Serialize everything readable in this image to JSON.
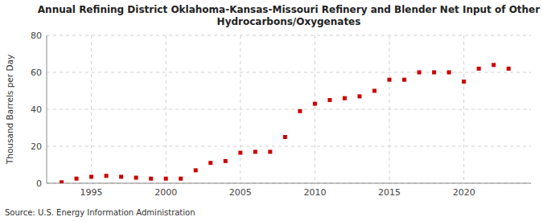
{
  "chart_data": {
    "type": "scatter",
    "title": "Annual Refining District Oklahoma-Kansas-Missouri Refinery and Blender Net Input of Other\nHydrocarbons/Oxygenates",
    "ylabel": "Thousand Barrels per Day",
    "source": "Source: U.S. Energy Information Administration",
    "x": [
      1993,
      1994,
      1995,
      1996,
      1997,
      1998,
      1999,
      2000,
      2001,
      2002,
      2003,
      2004,
      2005,
      2006,
      2007,
      2008,
      2009,
      2010,
      2011,
      2012,
      2013,
      2014,
      2015,
      2016,
      2017,
      2018,
      2019,
      2020,
      2021,
      2022,
      2023
    ],
    "values": [
      0.5,
      2.5,
      3.5,
      4.0,
      3.5,
      3.0,
      2.5,
      2.5,
      2.5,
      7.0,
      11.0,
      12.0,
      16.5,
      17.0,
      17.0,
      25.0,
      39.0,
      43.0,
      45.0,
      46.0,
      47.0,
      50.0,
      56.0,
      56.0,
      60.0,
      60.0,
      60.0,
      55.0,
      62.0,
      64.0,
      62.0
    ],
    "color": "#cc0000",
    "marker": "square",
    "xlim": [
      1992.0,
      2024.5
    ],
    "xticks": [
      1995,
      2000,
      2005,
      2010,
      2015,
      2020
    ],
    "ylim": [
      0,
      80
    ],
    "yticks": [
      0,
      20,
      40,
      60,
      80
    ],
    "grid": true
  }
}
